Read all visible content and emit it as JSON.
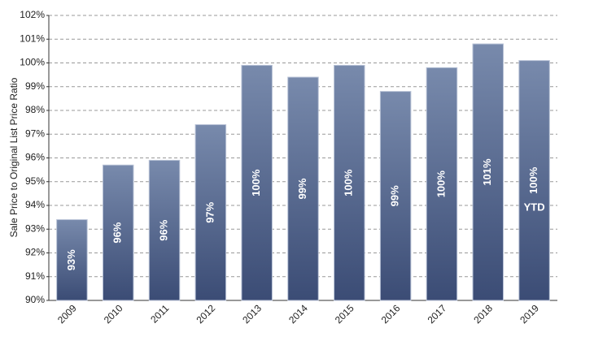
{
  "chart_data": {
    "type": "bar",
    "y_axis_label": "Sale Price to Original List Price Ratio",
    "categories": [
      "2009",
      "2010",
      "2011",
      "2012",
      "2013",
      "2014",
      "2015",
      "2016",
      "2017",
      "2018",
      "2019"
    ],
    "values": [
      93.4,
      95.7,
      95.9,
      97.4,
      99.9,
      99.4,
      99.9,
      98.8,
      99.8,
      100.8,
      100.1
    ],
    "value_labels": [
      "93%",
      "96%",
      "96%",
      "97%",
      "100%",
      "99%",
      "100%",
      "99%",
      "100%",
      "101%",
      "100%"
    ],
    "annotation": "YTD",
    "color": [
      "#788aac",
      "#3b4c75"
    ],
    "ylim": [
      90,
      102
    ],
    "yticks": [
      {
        "value": 90,
        "label": "90%"
      },
      {
        "value": 91,
        "label": "91%"
      },
      {
        "value": 92,
        "label": "92%"
      },
      {
        "value": 93,
        "label": "93%"
      },
      {
        "value": 94,
        "label": "94%"
      },
      {
        "value": 95,
        "label": "95%"
      },
      {
        "value": 96,
        "label": "96%"
      },
      {
        "value": 97,
        "label": "97%"
      },
      {
        "value": 98,
        "label": "98%"
      },
      {
        "value": 99,
        "label": "99%"
      },
      {
        "value": 100,
        "label": "100%"
      },
      {
        "value": 101,
        "label": "101%"
      },
      {
        "value": 102,
        "label": "102%"
      }
    ],
    "grid": true
  }
}
